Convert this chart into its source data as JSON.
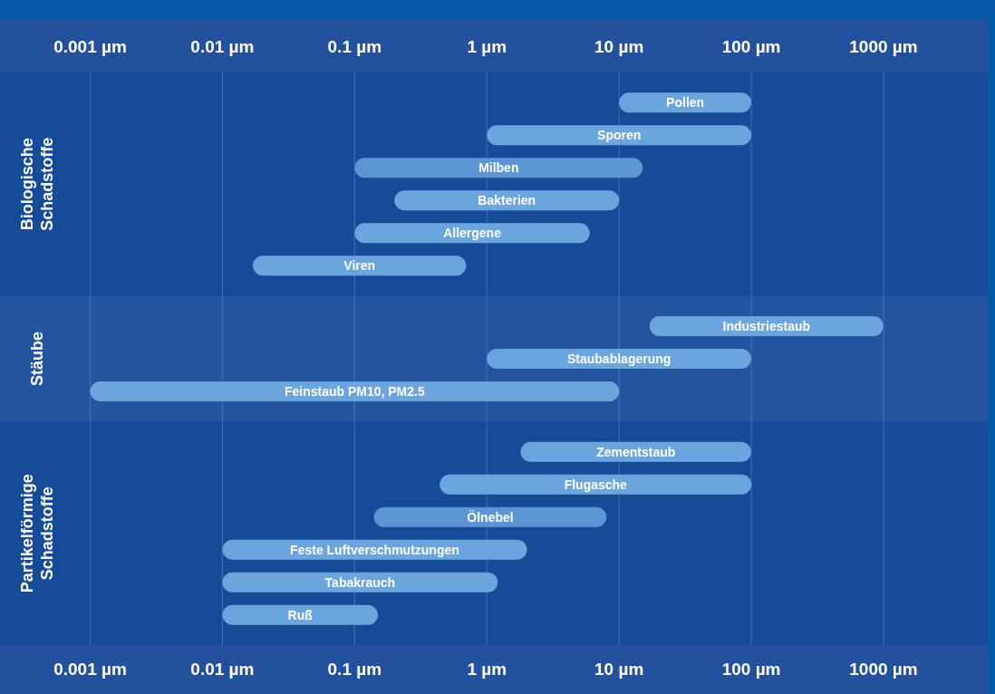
{
  "chart_data": [
    {
      "type": "bar",
      "orientation": "horizontal",
      "log": "x",
      "ylabel": "Biologische Schadstoffe",
      "categories": [
        "Pollen",
        "Sporen",
        "Milben",
        "Bakterien",
        "Allergene",
        "Viren"
      ],
      "base": [
        10,
        1,
        0.1,
        0.2,
        0.1,
        0.017
      ],
      "values": [
        90,
        99,
        15,
        9.8,
        5.9,
        0.68
      ],
      "colors": [
        "#6aa5dd",
        "#6aa5dd",
        "#5b95d3",
        "#6aa5dd",
        "#6aa5dd",
        "#6aa5dd"
      ],
      "xlim": [
        0.001,
        1000
      ],
      "xticks": [
        {
          "value": 0.001,
          "label": "0.001 µm"
        },
        {
          "value": 0.01,
          "label": "0.01 µm"
        },
        {
          "value": 0.1,
          "label": "0.1 µm"
        },
        {
          "value": 1,
          "label": "1 µm"
        },
        {
          "value": 10,
          "label": "10 µm"
        },
        {
          "value": 100,
          "label": "100 µm"
        },
        {
          "value": 1000,
          "label": "1000 µm"
        }
      ],
      "grid": "x"
    },
    {
      "type": "bar",
      "orientation": "horizontal",
      "log": "x",
      "ylabel": "Stäube",
      "categories": [
        "Industriestaub",
        "Staubablagerung",
        "Feinstaub PM10, PM2.5"
      ],
      "base": [
        17,
        1,
        0.001
      ],
      "values": [
        980,
        99,
        10
      ],
      "colors": [
        "#6aa5dd",
        "#6aa5dd",
        "#6aa5dd"
      ],
      "xlim": [
        0.001,
        1000
      ],
      "xticks": [
        0.001,
        0.01,
        0.1,
        1,
        10,
        100,
        1000
      ],
      "tick_labels": "y",
      "grid": "x"
    },
    {
      "type": "bar",
      "orientation": "horizontal",
      "log": "x",
      "ylabel": "Partikelförmige Schadstoffe",
      "categories": [
        "Zementstaub",
        "Flugasche",
        "Ölnebel",
        "Feste Luftverschmutzungen",
        "Tabakrauch",
        "Ruß"
      ],
      "base": [
        1.8,
        0.44,
        0.14,
        0.01,
        0.01,
        0.01
      ],
      "values": [
        98,
        100,
        7.9,
        2,
        1.2,
        0.14
      ],
      "colors": [
        "#6aa5dd",
        "#6aa5dd",
        "#5b95d3",
        "#6aa5dd",
        "#6aa5dd",
        "#6aa5dd"
      ],
      "xlim": [
        0.001,
        1000
      ],
      "xticks": [
        {
          "value": 0.001,
          "label": "0.001 µm"
        },
        {
          "value": 0.01,
          "label": "0.01 µm"
        },
        {
          "value": 0.1,
          "label": "0.1 µm"
        },
        {
          "value": 1,
          "label": "1 µm"
        },
        {
          "value": 10,
          "label": "10 µm"
        },
        {
          "value": 100,
          "label": "100 µm"
        },
        {
          "value": 1000,
          "label": "1000 µm"
        }
      ],
      "grid": "x"
    }
  ]
}
